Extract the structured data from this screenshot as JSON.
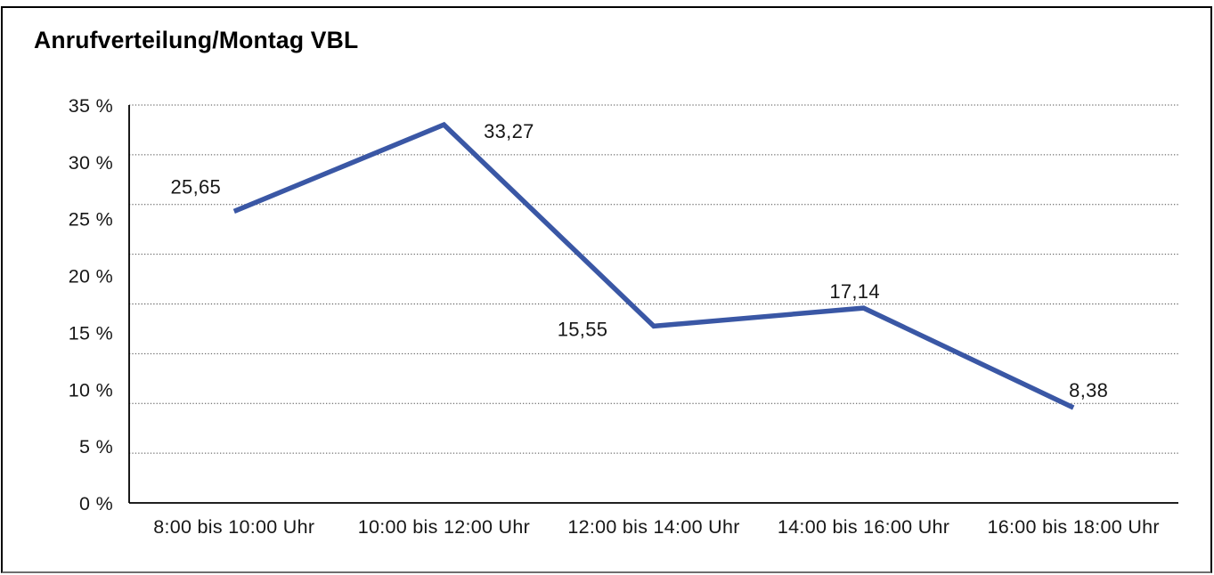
{
  "chart_data": {
    "type": "line",
    "title": "Anrufverteilung/Montag VBL",
    "categories": [
      "8:00 bis 10:00 Uhr",
      "10:00 bis 12:00 Uhr",
      "12:00 bis 14:00 Uhr",
      "14:00 bis 16:00 Uhr",
      "16:00 bis 18:00 Uhr"
    ],
    "values": [
      25.65,
      33.27,
      15.55,
      17.14,
      8.38
    ],
    "point_labels": [
      "25,65",
      "33,27",
      "15,55",
      "17,14",
      "8,38"
    ],
    "y_ticks": {
      "values": [
        35,
        30,
        25,
        20,
        15,
        10,
        5,
        0
      ],
      "labels": [
        "35 %",
        "30 %",
        "25 %",
        "20 %",
        "15 %",
        "10 %",
        "5 %",
        "0 %"
      ]
    },
    "ylim": [
      0,
      35
    ],
    "xlabel": "",
    "ylabel": "",
    "legend": "none",
    "grid": "horizontal-dotted",
    "grid_divisions": 8,
    "line_color": "#3A57A5",
    "text_color": "#171717",
    "background_color": "#ffffff",
    "decimal_separator": ","
  }
}
